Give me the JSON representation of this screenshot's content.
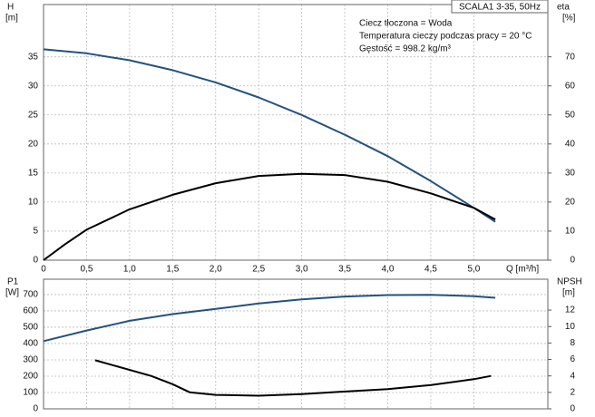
{
  "chart_data": [
    {
      "type": "line",
      "title": "SCALA1 3-35, 50Hz",
      "annotations": [
        "Ciecz tłoczona = Woda",
        "Temperatura cieczy podczas pracy = 20 °C",
        "Gęstość = 998.2 kg/m³"
      ],
      "ylabel": [
        "H",
        "[m]"
      ],
      "y2label": [
        "eta",
        "[%]"
      ],
      "xlabel": "Q [m³/h]",
      "xlim": [
        0,
        5.86
      ],
      "xticks": [
        0,
        {
          "value": 0.5,
          "label": "0,5"
        },
        {
          "value": 1,
          "label": "1,0"
        },
        {
          "value": 1.5,
          "label": "1,5"
        },
        {
          "value": 2,
          "label": "2,0"
        },
        {
          "value": 2.5,
          "label": "2,5"
        },
        {
          "value": 3,
          "label": "3,0"
        },
        {
          "value": 3.5,
          "label": "3,5"
        },
        {
          "value": 4,
          "label": "4,0"
        },
        {
          "value": 4.5,
          "label": "4,5"
        },
        {
          "value": 5,
          "label": "5,0"
        }
      ],
      "ylim": [
        0,
        44
      ],
      "yticks": [
        0,
        5,
        10,
        15,
        20,
        25,
        30,
        35
      ],
      "y2lim": [
        0,
        88
      ],
      "y2ticks": [
        0,
        10,
        20,
        30,
        40,
        50,
        60,
        70
      ],
      "grid": true,
      "series": [
        {
          "color": "#24527e",
          "x": [
            0,
            0.5,
            1,
            1.5,
            2,
            2.5,
            3,
            3.5,
            4,
            4.5,
            5,
            5.25
          ],
          "values": [
            36.3,
            35.6,
            34.4,
            32.7,
            30.6,
            28,
            25,
            21.6,
            17.9,
            13.6,
            9,
            6.6
          ]
        },
        {
          "color": "#000000",
          "axis": "y2",
          "x": [
            0,
            0.25,
            0.5,
            1,
            1.5,
            2,
            2.5,
            3,
            3.5,
            4,
            4.5,
            5,
            5.25
          ],
          "values": [
            0,
            5.5,
            10.5,
            17.5,
            22.5,
            26.5,
            29,
            29.7,
            29.3,
            27,
            23,
            18,
            14
          ]
        }
      ]
    },
    {
      "type": "line",
      "ylabel": [
        "P1",
        "[W]"
      ],
      "y2label": [
        "NPSH",
        "[m]"
      ],
      "xlim": [
        0,
        5.86
      ],
      "ylim": [
        0,
        794
      ],
      "yticks": [
        0,
        100,
        200,
        300,
        400,
        500,
        600,
        700
      ],
      "y2lim": [
        0,
        15.75
      ],
      "y2ticks": [
        0,
        2,
        4,
        6,
        8,
        10,
        12
      ],
      "grid": true,
      "series": [
        {
          "color": "#24527e",
          "x": [
            0,
            0.5,
            1,
            1.5,
            2,
            2.5,
            3,
            3.5,
            4,
            4.5,
            5,
            5.25
          ],
          "values": [
            415,
            480,
            539,
            580,
            612,
            645,
            670,
            688,
            697,
            698,
            690,
            680
          ]
        },
        {
          "color": "#000000",
          "axis": "y2",
          "x": [
            0.6,
            1.25,
            1.5,
            1.7,
            2,
            2.5,
            3,
            3.5,
            4,
            4.5,
            5,
            5.2
          ],
          "values": [
            5.9,
            4,
            3,
            2,
            1.7,
            1.6,
            1.8,
            2.1,
            2.4,
            2.9,
            3.6,
            4
          ]
        }
      ]
    }
  ]
}
